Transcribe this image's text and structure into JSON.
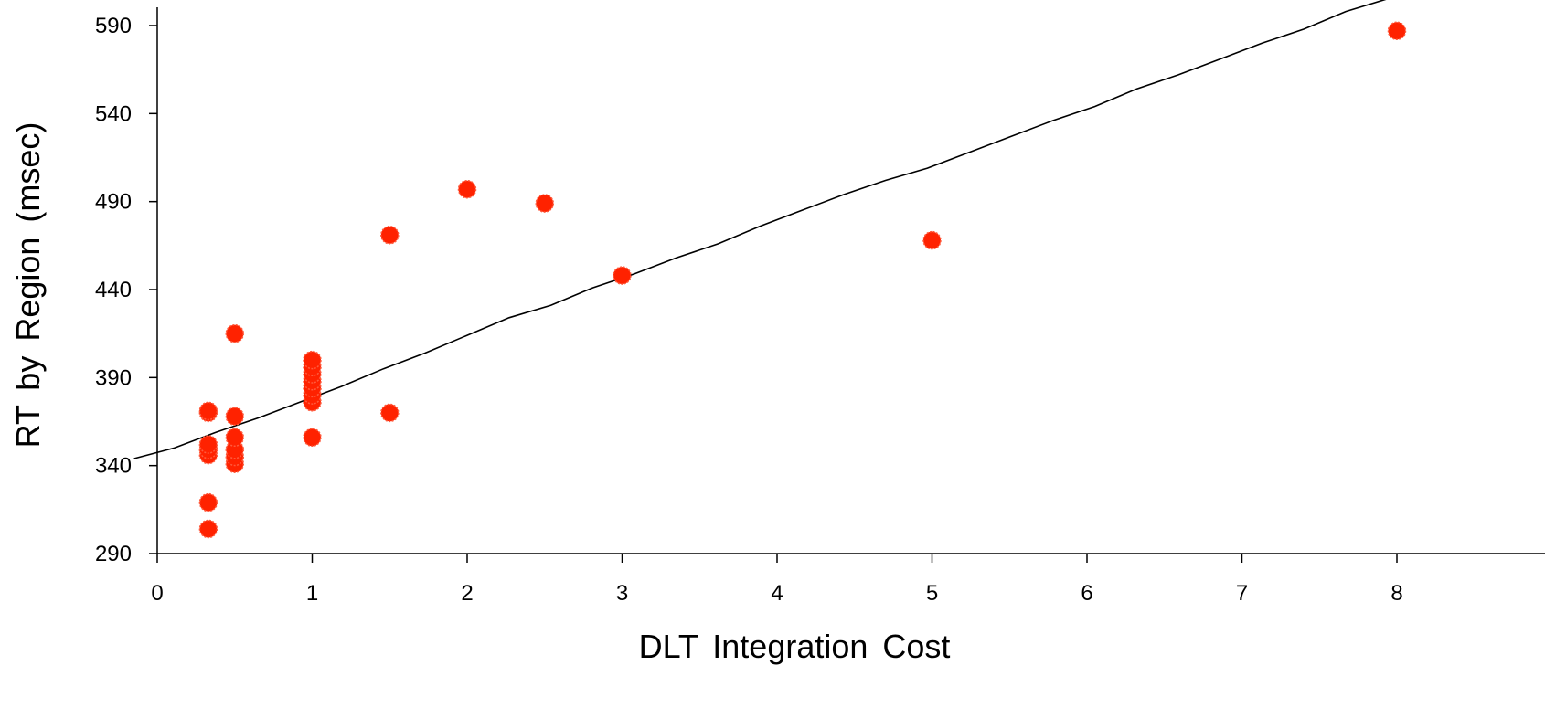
{
  "chart_data": {
    "type": "scatter",
    "title": "",
    "xlabel": "DLT Integration Cost",
    "ylabel": "RT by Region (msec)",
    "xlim": [
      0,
      8
    ],
    "ylim": [
      290,
      600
    ],
    "xticks": [
      0,
      1,
      2,
      3,
      4,
      5,
      6,
      7,
      8
    ],
    "yticks": [
      290,
      340,
      390,
      440,
      490,
      540,
      590
    ],
    "grid": false,
    "legend": "none",
    "colors": {
      "points": "#ff2200",
      "line": "#000000",
      "axis": "#000000"
    },
    "points": [
      {
        "x": 0.33,
        "y": 304
      },
      {
        "x": 0.33,
        "y": 319
      },
      {
        "x": 0.33,
        "y": 346
      },
      {
        "x": 0.33,
        "y": 349
      },
      {
        "x": 0.33,
        "y": 352
      },
      {
        "x": 0.33,
        "y": 370
      },
      {
        "x": 0.33,
        "y": 371
      },
      {
        "x": 0.5,
        "y": 341
      },
      {
        "x": 0.5,
        "y": 345
      },
      {
        "x": 0.5,
        "y": 349
      },
      {
        "x": 0.5,
        "y": 356
      },
      {
        "x": 0.5,
        "y": 368
      },
      {
        "x": 0.5,
        "y": 415
      },
      {
        "x": 1,
        "y": 356
      },
      {
        "x": 1,
        "y": 376
      },
      {
        "x": 1,
        "y": 380
      },
      {
        "x": 1,
        "y": 384
      },
      {
        "x": 1,
        "y": 388
      },
      {
        "x": 1,
        "y": 392
      },
      {
        "x": 1,
        "y": 396
      },
      {
        "x": 1,
        "y": 400
      },
      {
        "x": 1.5,
        "y": 370
      },
      {
        "x": 1.5,
        "y": 471
      },
      {
        "x": 2,
        "y": 497
      },
      {
        "x": 2.5,
        "y": 489
      },
      {
        "x": 3,
        "y": 448
      },
      {
        "x": 5,
        "y": 468
      },
      {
        "x": 8,
        "y": 587
      }
    ],
    "fit_line": {
      "x": [
        -0.15,
        0.11,
        0.38,
        0.65,
        0.92,
        1.19,
        1.46,
        1.73,
        2.0,
        2.27,
        2.54,
        2.81,
        3.08,
        3.35,
        3.62,
        3.89,
        4.16,
        4.43,
        4.7,
        4.97,
        5.24,
        5.51,
        5.78,
        6.05,
        6.32,
        6.59,
        6.86,
        7.13,
        7.4,
        7.67,
        7.97
      ],
      "y": [
        344,
        350,
        359,
        367,
        376,
        385,
        395,
        404,
        414,
        424,
        431,
        441,
        449,
        458,
        466,
        476,
        485,
        494,
        502,
        509,
        518,
        527,
        536,
        544,
        554,
        562,
        571,
        580,
        588,
        598,
        606
      ]
    }
  }
}
